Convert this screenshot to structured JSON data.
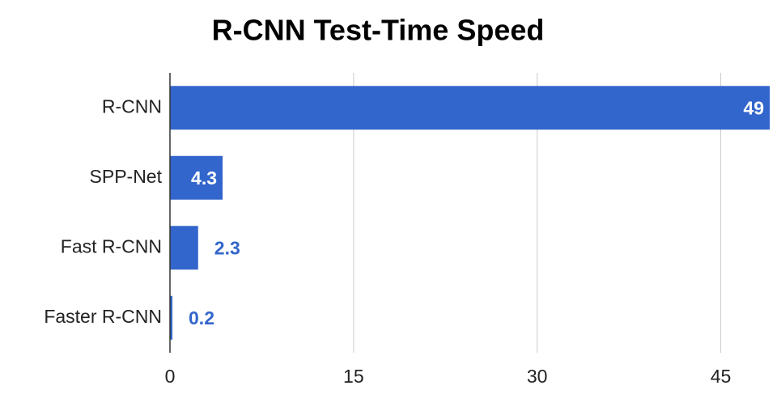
{
  "chart_data": {
    "type": "bar",
    "orientation": "horizontal",
    "title": "R-CNN Test-Time Speed",
    "categories": [
      "R-CNN",
      "SPP-Net",
      "Fast R-CNN",
      "Faster R-CNN"
    ],
    "values": [
      49,
      4.3,
      2.3,
      0.2
    ],
    "color": "#3366cc",
    "xlim": [
      0,
      49
    ],
    "xticks": [
      0,
      15,
      30,
      45
    ],
    "grid": true
  }
}
